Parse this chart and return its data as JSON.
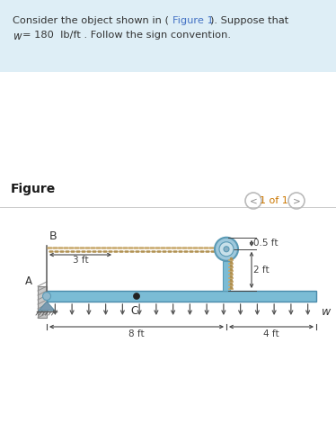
{
  "bg_color": "#ffffff",
  "header_bg": "#deeef6",
  "beam_color": "#7bbcd5",
  "beam_dark": "#5a9ab5",
  "beam_edge": "#4a8aaa",
  "rope_color": "#c8a86b",
  "rope_color2": "#b09050",
  "wall_color": "#c8c8c8",
  "wall_hatch": "#909090",
  "arrow_color": "#555555",
  "dim_color": "#444444",
  "support_color": "#7a9ab0",
  "label_B": "B",
  "label_A": "A",
  "label_C": "C",
  "label_w": "w",
  "dim_3ft": "3 ft",
  "dim_8ft": "8 ft",
  "dim_4ft": "4 ft",
  "dim_05ft": "0.5 ft",
  "dim_2ft": "2 ft",
  "figure_label": "Figure",
  "page_label": "1 of 1",
  "header_line1": "Consider the object shown in (Figure 1). Suppose that",
  "header_line2": "w = 180  lb/ft . Follow the sign convention.",
  "fig1_color": "#4472c4"
}
